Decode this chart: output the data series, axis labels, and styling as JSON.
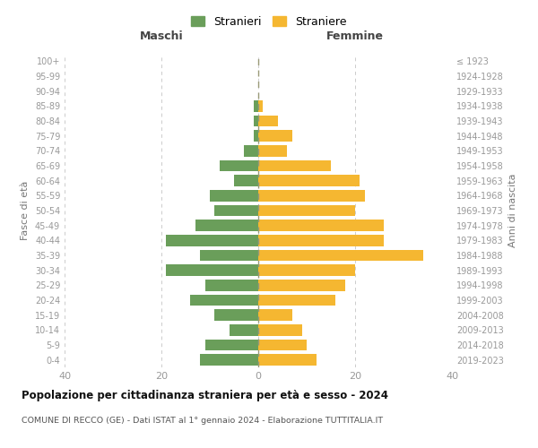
{
  "age_groups": [
    "0-4",
    "5-9",
    "10-14",
    "15-19",
    "20-24",
    "25-29",
    "30-34",
    "35-39",
    "40-44",
    "45-49",
    "50-54",
    "55-59",
    "60-64",
    "65-69",
    "70-74",
    "75-79",
    "80-84",
    "85-89",
    "90-94",
    "95-99",
    "100+"
  ],
  "birth_years": [
    "2019-2023",
    "2014-2018",
    "2009-2013",
    "2004-2008",
    "1999-2003",
    "1994-1998",
    "1989-1993",
    "1984-1988",
    "1979-1983",
    "1974-1978",
    "1969-1973",
    "1964-1968",
    "1959-1963",
    "1954-1958",
    "1949-1953",
    "1944-1948",
    "1939-1943",
    "1934-1938",
    "1929-1933",
    "1924-1928",
    "≤ 1923"
  ],
  "maschi": [
    12,
    11,
    6,
    9,
    14,
    11,
    19,
    12,
    19,
    13,
    9,
    10,
    5,
    8,
    3,
    1,
    1,
    1,
    0,
    0,
    0
  ],
  "femmine": [
    12,
    10,
    9,
    7,
    16,
    18,
    20,
    34,
    26,
    26,
    20,
    22,
    21,
    15,
    6,
    7,
    4,
    1,
    0,
    0,
    0
  ],
  "maschi_color": "#6a9e5a",
  "femmine_color": "#f5b731",
  "background_color": "#ffffff",
  "grid_color": "#cccccc",
  "title": "Popolazione per cittadinanza straniera per età e sesso - 2024",
  "subtitle": "COMUNE DI RECCO (GE) - Dati ISTAT al 1° gennaio 2024 - Elaborazione TUTTITALIA.IT",
  "xlabel_left": "Maschi",
  "xlabel_right": "Femmine",
  "ylabel_left": "Fasce di età",
  "ylabel_right": "Anni di nascita",
  "legend_maschi": "Stranieri",
  "legend_femmine": "Straniere",
  "xlim": [
    -40,
    40
  ],
  "xticks": [
    -40,
    -20,
    0,
    20,
    40
  ],
  "xticklabels": [
    "40",
    "20",
    "0",
    "20",
    "40"
  ]
}
